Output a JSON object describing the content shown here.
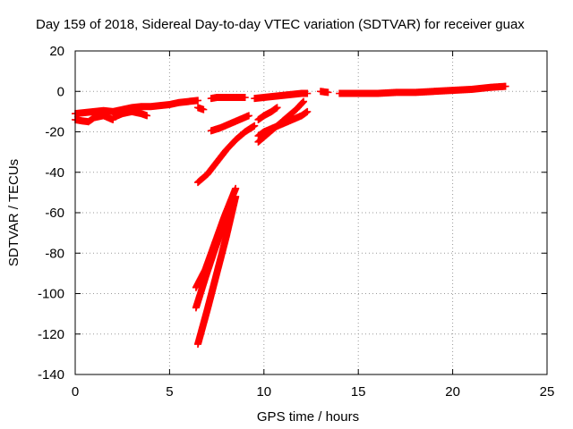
{
  "chart_data": {
    "type": "scatter",
    "title": "Day 159 of 2018, Sidereal Day-to-day VTEC variation (SDTVAR) for receiver guax",
    "xlabel": "GPS time / hours",
    "ylabel": "SDTVAR / TECUs",
    "xlim": [
      0,
      25
    ],
    "ylim": [
      -140,
      20
    ],
    "xticks": [
      0,
      5,
      10,
      15,
      20,
      25
    ],
    "yticks": [
      -140,
      -120,
      -100,
      -80,
      -60,
      -40,
      -20,
      0,
      20
    ],
    "grid": true,
    "marker": "+",
    "color": "#ff0000",
    "segments": [
      {
        "x": [
          0.0,
          0.5,
          1.0,
          1.5,
          2.0,
          2.5,
          3.0,
          3.5,
          4.0,
          4.5,
          5.0,
          5.5,
          6.0,
          6.5
        ],
        "y": [
          -11,
          -10.5,
          -10,
          -9.5,
          -10,
          -9,
          -8,
          -7.5,
          -7.5,
          -7,
          -6.5,
          -5.5,
          -5,
          -4.5
        ]
      },
      {
        "x": [
          0.0,
          0.3,
          0.7,
          1.0,
          1.5,
          2.0
        ],
        "y": [
          -14,
          -14.5,
          -15,
          -13,
          -12,
          -14
        ]
      },
      {
        "x": [
          2.0,
          2.5,
          3.0,
          3.5,
          3.8
        ],
        "y": [
          -13,
          -11,
          -10,
          -11,
          -12
        ]
      },
      {
        "x": [
          6.5,
          6.8
        ],
        "y": [
          -8,
          -9
        ]
      },
      {
        "x": [
          7.2,
          7.5,
          8.0,
          8.5,
          9.0
        ],
        "y": [
          -3.5,
          -3,
          -3,
          -3,
          -3
        ]
      },
      {
        "x": [
          9.5,
          10.0,
          10.5,
          11.0,
          11.5,
          12.0,
          12.3
        ],
        "y": [
          -3.5,
          -3,
          -2.5,
          -2,
          -1.5,
          -1,
          -1
        ]
      },
      {
        "x": [
          7.2,
          7.7,
          8.2,
          8.7,
          9.2
        ],
        "y": [
          -19.5,
          -18,
          -16,
          -14,
          -12
        ]
      },
      {
        "x": [
          6.5,
          7.0,
          7.5,
          8.0,
          8.5,
          9.0,
          9.5
        ],
        "y": [
          -45,
          -41,
          -35,
          -29,
          -24,
          -20,
          -17
        ]
      },
      {
        "x": [
          9.7,
          10.0,
          10.5,
          11.0,
          11.5,
          12.0,
          12.3
        ],
        "y": [
          -22,
          -20,
          -18,
          -16,
          -14,
          -12,
          -10
        ]
      },
      {
        "x": [
          9.7,
          10.2,
          10.7,
          11.2,
          11.7,
          12.1
        ],
        "y": [
          -25,
          -21,
          -17,
          -13,
          -9,
          -5
        ]
      },
      {
        "x": [
          9.7,
          10.0,
          10.4,
          10.7
        ],
        "y": [
          -14,
          -12,
          -10,
          -8
        ]
      },
      {
        "x": [
          6.4,
          6.9,
          7.4,
          7.9,
          8.5
        ],
        "y": [
          -97,
          -88,
          -75,
          -62,
          -48
        ]
      },
      {
        "x": [
          6.4,
          6.9,
          7.4,
          7.9,
          8.4
        ],
        "y": [
          -107,
          -92,
          -78,
          -65,
          -53
        ]
      },
      {
        "x": [
          6.5,
          7.0,
          7.5,
          8.0,
          8.5
        ],
        "y": [
          -125,
          -108,
          -90,
          -72,
          -52
        ]
      },
      {
        "x": [
          13.0,
          13.4
        ],
        "y": [
          0,
          -0.5
        ]
      },
      {
        "x": [
          14.0,
          15.0,
          16.0,
          17.0,
          18.0,
          19.0,
          20.0,
          21.0,
          22.0,
          22.8
        ],
        "y": [
          -1,
          -1,
          -1,
          -0.5,
          -0.5,
          0,
          0.5,
          1,
          2,
          2.5
        ]
      }
    ]
  }
}
